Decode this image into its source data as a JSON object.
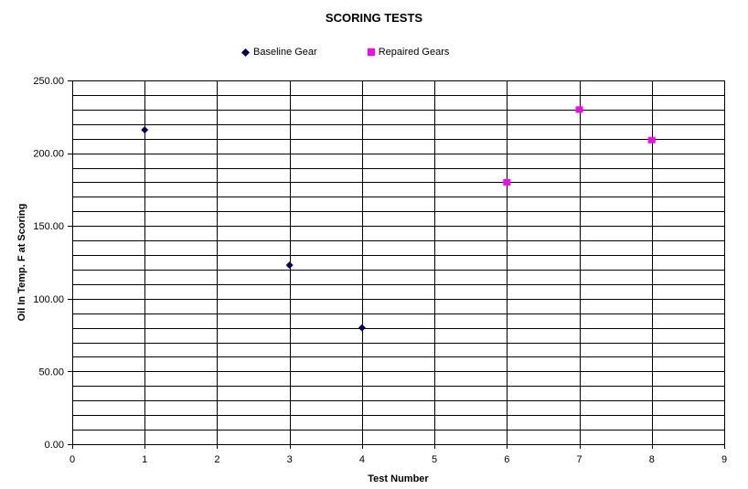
{
  "chart_data": {
    "type": "scatter",
    "title": "SCORING TESTS",
    "xlabel": "Test Number",
    "ylabel": "Oil In Temp. F at Scoring",
    "xlim": [
      0,
      9
    ],
    "ylim": [
      0,
      250
    ],
    "x_ticks": [
      0,
      1,
      2,
      3,
      4,
      5,
      6,
      7,
      8,
      9
    ],
    "y_ticks": [
      "0.00",
      "50.00",
      "100.00",
      "150.00",
      "200.00",
      "250.00"
    ],
    "y_minor_step": 10,
    "grid": true,
    "legend_position": "top",
    "series": [
      {
        "name": "Baseline Gear",
        "marker": "diamond",
        "color": "#000066",
        "points": [
          {
            "x": 1,
            "y": 216
          },
          {
            "x": 3,
            "y": 123
          },
          {
            "x": 4,
            "y": 80
          }
        ]
      },
      {
        "name": "Repaired Gears",
        "marker": "square",
        "color": "#ff00ff",
        "points": [
          {
            "x": 6,
            "y": 180
          },
          {
            "x": 7,
            "y": 230
          },
          {
            "x": 8,
            "y": 209
          }
        ]
      }
    ]
  }
}
